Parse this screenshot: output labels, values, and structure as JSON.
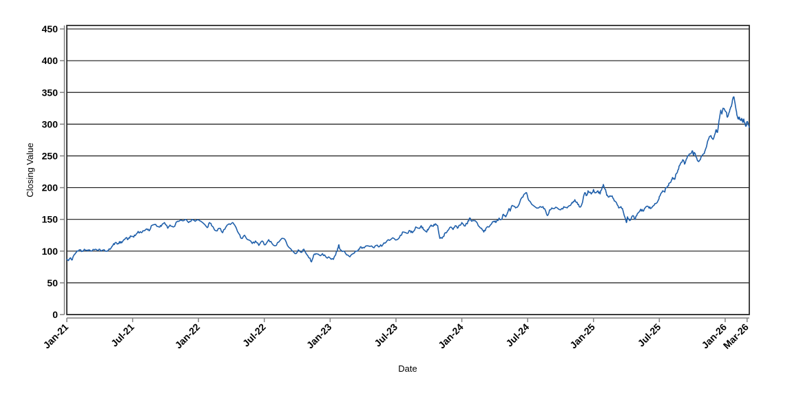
{
  "chart_data": {
    "type": "line",
    "title": "",
    "xlabel": "Date",
    "ylabel": "Closing Value",
    "grid": true,
    "legend_position": "none",
    "line_color": "#1f5faa",
    "x_axis": {
      "tick_labels": [
        "Jan-21",
        "Jul-21",
        "Jan-22",
        "Jul-22",
        "Jan-23",
        "Jul-23",
        "Jan-24",
        "Jul-24",
        "Jan-25",
        "Jul-25",
        "Jan-26",
        "Mar-26"
      ],
      "tick_months": [
        0,
        6,
        12,
        18,
        24,
        30,
        36,
        42,
        48,
        54,
        60,
        62
      ],
      "range_months": [
        0,
        62.2
      ]
    },
    "y_axis": {
      "ticks": [
        0,
        50,
        100,
        150,
        200,
        250,
        300,
        350,
        400,
        450
      ],
      "range": [
        0,
        455.5
      ]
    },
    "noise": {
      "seed": 11,
      "amplitude": 2.0,
      "subdivisions": 3
    },
    "series": [
      {
        "name": "Closing Value",
        "points": [
          [
            0,
            87
          ],
          [
            0.15,
            85
          ],
          [
            0.3,
            89
          ],
          [
            0.45,
            86
          ],
          [
            0.6,
            92
          ],
          [
            0.8,
            97
          ],
          [
            1,
            100
          ],
          [
            1.2,
            102
          ],
          [
            1.4,
            100
          ],
          [
            1.6,
            103
          ],
          [
            1.8,
            101
          ],
          [
            2,
            102
          ],
          [
            2.2,
            100
          ],
          [
            2.5,
            102
          ],
          [
            2.8,
            101
          ],
          [
            3,
            103
          ],
          [
            3.2,
            101
          ],
          [
            3.5,
            100
          ],
          [
            3.8,
            102
          ],
          [
            4,
            104
          ],
          [
            4.2,
            109
          ],
          [
            4.4,
            113
          ],
          [
            4.6,
            111
          ],
          [
            4.8,
            115
          ],
          [
            5,
            113
          ],
          [
            5.2,
            118
          ],
          [
            5.4,
            121
          ],
          [
            5.6,
            119
          ],
          [
            5.8,
            124
          ],
          [
            6.1,
            122
          ],
          [
            6.3,
            126
          ],
          [
            6.5,
            131
          ],
          [
            6.8,
            129
          ],
          [
            7,
            132
          ],
          [
            7.3,
            135
          ],
          [
            7.5,
            132
          ],
          [
            7.7,
            140
          ],
          [
            8.1,
            142
          ],
          [
            8.4,
            138
          ],
          [
            8.6,
            139
          ],
          [
            8.9,
            145
          ],
          [
            9.2,
            136
          ],
          [
            9.4,
            141
          ],
          [
            9.7,
            138
          ],
          [
            10.1,
            147
          ],
          [
            10.4,
            149
          ],
          [
            10.8,
            150
          ],
          [
            11.1,
            145
          ],
          [
            11.4,
            150
          ],
          [
            11.7,
            147
          ],
          [
            12.1,
            148
          ],
          [
            12.5,
            143
          ],
          [
            12.8,
            137
          ],
          [
            13,
            145
          ],
          [
            13.2,
            140
          ],
          [
            13.6,
            132
          ],
          [
            13.9,
            136
          ],
          [
            14.2,
            129
          ],
          [
            14.5,
            138
          ],
          [
            14.8,
            143
          ],
          [
            15.1,
            145
          ],
          [
            15.3,
            141
          ],
          [
            15.7,
            127
          ],
          [
            15.9,
            120
          ],
          [
            16.2,
            125
          ],
          [
            16.5,
            118
          ],
          [
            16.9,
            112
          ],
          [
            17.2,
            116
          ],
          [
            17.5,
            109
          ],
          [
            17.8,
            116
          ],
          [
            18.1,
            110
          ],
          [
            18.4,
            118
          ],
          [
            18.7,
            112
          ],
          [
            19.1,
            109
          ],
          [
            19.4,
            116
          ],
          [
            19.7,
            120
          ],
          [
            20,
            114
          ],
          [
            20.3,
            105
          ],
          [
            20.6,
            100
          ],
          [
            20.8,
            96
          ],
          [
            21.1,
            102
          ],
          [
            21.4,
            98
          ],
          [
            21.6,
            103
          ],
          [
            21.9,
            94
          ],
          [
            22.1,
            89
          ],
          [
            22.3,
            83
          ],
          [
            22.5,
            94
          ],
          [
            22.7,
            96
          ],
          [
            23,
            94
          ],
          [
            23.3,
            96
          ],
          [
            23.6,
            91
          ],
          [
            24,
            89
          ],
          [
            24.3,
            87
          ],
          [
            24.5,
            94
          ],
          [
            24.7,
            105
          ],
          [
            24.8,
            110
          ],
          [
            24.9,
            103
          ],
          [
            25.2,
            100
          ],
          [
            25.5,
            94
          ],
          [
            25.8,
            91
          ],
          [
            26.1,
            96
          ],
          [
            26.4,
            100
          ],
          [
            26.6,
            103
          ],
          [
            26.8,
            107
          ],
          [
            27.1,
            105
          ],
          [
            27.5,
            108
          ],
          [
            27.9,
            106
          ],
          [
            28.2,
            109
          ],
          [
            28.5,
            107
          ],
          [
            28.8,
            110
          ],
          [
            29.1,
            114
          ],
          [
            29.4,
            117
          ],
          [
            29.7,
            121
          ],
          [
            30.1,
            118
          ],
          [
            30.4,
            125
          ],
          [
            30.7,
            130
          ],
          [
            31,
            128
          ],
          [
            31.3,
            132
          ],
          [
            31.5,
            129
          ],
          [
            31.8,
            138
          ],
          [
            32.1,
            136
          ],
          [
            32.3,
            140
          ],
          [
            32.5,
            134
          ],
          [
            32.8,
            130
          ],
          [
            33,
            136
          ],
          [
            33.2,
            141
          ],
          [
            33.4,
            139
          ],
          [
            33.6,
            143
          ],
          [
            33.8,
            140
          ],
          [
            34,
            120
          ],
          [
            34.3,
            123
          ],
          [
            34.5,
            129
          ],
          [
            34.7,
            132
          ],
          [
            35,
            138
          ],
          [
            35.2,
            134
          ],
          [
            35.4,
            140
          ],
          [
            35.6,
            136
          ],
          [
            35.8,
            141
          ],
          [
            36,
            145
          ],
          [
            36.2,
            140
          ],
          [
            36.5,
            143
          ],
          [
            36.7,
            152
          ],
          [
            36.9,
            147
          ],
          [
            37.2,
            148
          ],
          [
            37.5,
            140
          ],
          [
            37.8,
            136
          ],
          [
            38,
            130
          ],
          [
            38.2,
            136
          ],
          [
            38.6,
            141
          ],
          [
            38.9,
            147
          ],
          [
            39.1,
            145
          ],
          [
            39.4,
            152
          ],
          [
            39.6,
            150
          ],
          [
            39.8,
            158
          ],
          [
            40,
            154
          ],
          [
            40.3,
            167
          ],
          [
            40.4,
            163
          ],
          [
            40.6,
            172
          ],
          [
            40.9,
            168
          ],
          [
            41.1,
            170
          ],
          [
            41.5,
            185
          ],
          [
            41.7,
            190
          ],
          [
            41.9,
            192
          ],
          [
            42.1,
            180
          ],
          [
            42.5,
            172
          ],
          [
            43,
            168
          ],
          [
            43.4,
            170
          ],
          [
            43.6,
            165
          ],
          [
            43.8,
            156
          ],
          [
            44,
            165
          ],
          [
            44.3,
            167
          ],
          [
            44.7,
            168
          ],
          [
            45,
            165
          ],
          [
            45.3,
            170
          ],
          [
            45.6,
            168
          ],
          [
            45.9,
            172
          ],
          [
            46.1,
            176
          ],
          [
            46.3,
            181
          ],
          [
            46.5,
            177
          ],
          [
            46.7,
            170
          ],
          [
            46.9,
            172
          ],
          [
            47.2,
            192
          ],
          [
            47.4,
            188
          ],
          [
            47.5,
            195
          ],
          [
            47.8,
            190
          ],
          [
            48,
            197
          ],
          [
            48.2,
            192
          ],
          [
            48.4,
            195
          ],
          [
            48.6,
            190
          ],
          [
            48.8,
            201
          ],
          [
            48.9,
            205
          ],
          [
            49.1,
            197
          ],
          [
            49.2,
            188
          ],
          [
            49.4,
            185
          ],
          [
            49.7,
            187
          ],
          [
            49.9,
            179
          ],
          [
            50.1,
            176
          ],
          [
            50.3,
            168
          ],
          [
            50.5,
            170
          ],
          [
            50.7,
            163
          ],
          [
            51,
            145
          ],
          [
            51.1,
            154
          ],
          [
            51.3,
            148
          ],
          [
            51.6,
            156
          ],
          [
            51.8,
            150
          ],
          [
            52,
            159
          ],
          [
            52.3,
            166
          ],
          [
            52.5,
            163
          ],
          [
            52.7,
            168
          ],
          [
            53,
            170
          ],
          [
            53.2,
            167
          ],
          [
            53.5,
            172
          ],
          [
            53.6,
            175
          ],
          [
            53.9,
            180
          ],
          [
            54,
            186
          ],
          [
            54.2,
            192
          ],
          [
            54.3,
            195
          ],
          [
            54.5,
            193
          ],
          [
            54.6,
            200
          ],
          [
            54.8,
            203
          ],
          [
            54.9,
            207
          ],
          [
            55.1,
            211
          ],
          [
            55.2,
            216
          ],
          [
            55.4,
            213
          ],
          [
            55.5,
            221
          ],
          [
            55.7,
            228
          ],
          [
            55.8,
            234
          ],
          [
            56,
            240
          ],
          [
            56.2,
            243
          ],
          [
            56.3,
            237
          ],
          [
            56.5,
            246
          ],
          [
            56.6,
            250
          ],
          [
            56.8,
            253
          ],
          [
            57,
            258
          ],
          [
            57.1,
            252
          ],
          [
            57.2,
            255
          ],
          [
            57.4,
            247
          ],
          [
            57.6,
            241
          ],
          [
            57.8,
            248
          ],
          [
            58.1,
            254
          ],
          [
            58.2,
            260
          ],
          [
            58.5,
            277
          ],
          [
            58.7,
            282
          ],
          [
            58.9,
            276
          ],
          [
            59.1,
            286
          ],
          [
            59.2,
            291
          ],
          [
            59.3,
            287
          ],
          [
            59.5,
            311
          ],
          [
            59.6,
            322
          ],
          [
            59.7,
            316
          ],
          [
            59.8,
            325
          ],
          [
            60.1,
            319
          ],
          [
            60.2,
            311
          ],
          [
            60.4,
            320
          ],
          [
            60.5,
            327
          ],
          [
            60.6,
            331
          ],
          [
            60.7,
            340
          ],
          [
            60.8,
            343
          ],
          [
            60.9,
            333
          ],
          [
            61,
            322
          ],
          [
            61.1,
            313
          ],
          [
            61.2,
            308
          ],
          [
            61.3,
            311
          ],
          [
            61.4,
            306
          ],
          [
            61.5,
            309
          ],
          [
            61.6,
            303
          ],
          [
            61.7,
            308
          ],
          [
            61.8,
            302
          ],
          [
            61.9,
            297
          ],
          [
            62,
            304
          ],
          [
            62.1,
            300
          ],
          [
            62.2,
            295
          ]
        ]
      }
    ]
  },
  "colors": {
    "background": "#ffffff",
    "grid_line": "#1a1a1a",
    "plot_frame": "#2b2b2b",
    "axis_line": "#808080",
    "label_text": "#000000"
  }
}
